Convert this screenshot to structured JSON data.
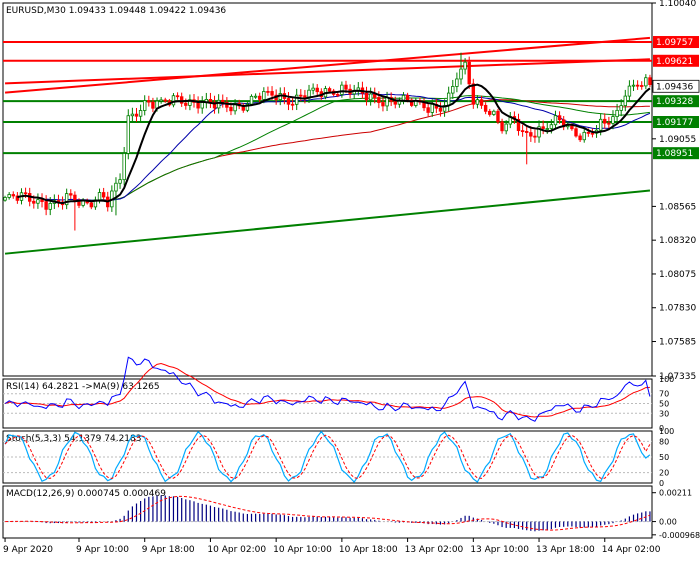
{
  "chart_data": [
    {
      "id": "main",
      "type": "candlestick",
      "title": "EURUSD,M30  1.09433 1.09448 1.09422 1.09436",
      "ylim": [
        1.07335,
        1.1004
      ],
      "y_ticks": [
        "1.10040",
        "1.09757",
        "1.09621",
        "1.09436",
        "1.09328",
        "1.09177",
        "1.09055",
        "1.08951",
        "1.08565",
        "1.08320",
        "1.08075",
        "1.07830",
        "1.07585",
        "1.07335"
      ],
      "x_labels": [
        "9 Apr 2020",
        "9 Apr 10:00",
        "9 Apr 18:00",
        "10 Apr 02:00",
        "10 Apr 10:00",
        "10 Apr 18:00",
        "13 Apr 02:00",
        "13 Apr 10:00",
        "13 Apr 18:00",
        "14 Apr 02:00"
      ],
      "price_line_label": "1.09436",
      "levels": [
        {
          "label": "1.09757",
          "value": 1.09757,
          "color": "#ff0000"
        },
        {
          "label": "1.09621",
          "value": 1.09621,
          "color": "#ff0000"
        },
        {
          "label": "1.09328",
          "value": 1.09328,
          "color": "#008000"
        },
        {
          "label": "1.09177",
          "value": 1.09177,
          "color": "#008000"
        },
        {
          "label": "1.08951",
          "value": 1.08951,
          "color": "#008000"
        }
      ],
      "trendlines": [
        {
          "color": "#ff0000",
          "p1": [
            0,
            1.0939
          ],
          "p2": [
            157,
            1.09787
          ]
        },
        {
          "color": "#ff0000",
          "p1": [
            0,
            1.09457
          ],
          "p2": [
            157,
            1.09632
          ]
        },
        {
          "color": "#008000",
          "p1": [
            0,
            1.08222
          ],
          "p2": [
            157,
            1.0868
          ]
        }
      ],
      "ma_colors": {
        "fast": "#000000",
        "medium": "#0000aa",
        "slow": "#008000",
        "slowest": "#cc0000"
      },
      "candle_up_color": "#008000",
      "candle_down_color": "#ff0000"
    },
    {
      "id": "rsi",
      "type": "line",
      "title": "RSI(14) 64.2821  ->MA(9) 63.1265",
      "ylim": [
        0,
        100
      ],
      "y_ticks": [
        "100",
        "70",
        "50",
        "30",
        "0"
      ],
      "series": [
        {
          "name": "RSI(14)",
          "color": "#0000ff"
        },
        {
          "name": "MA(9)",
          "color": "#ff0000"
        }
      ]
    },
    {
      "id": "stoch",
      "type": "line",
      "title": "Stoch(5,3,3) 54.1379 74.2183",
      "ylim": [
        0,
        100
      ],
      "y_ticks": [
        "100",
        "80",
        "50",
        "20",
        "0"
      ],
      "series": [
        {
          "name": "Main",
          "color": "#00aaff"
        },
        {
          "name": "Signal",
          "color": "#ff0000"
        }
      ]
    },
    {
      "id": "macd",
      "type": "bar",
      "title": "MACD(12,26,9) 0.000745 0.000469",
      "ylim": [
        -0.0012,
        0.0026
      ],
      "y_ticks": [
        "0.00211",
        "0.00",
        "-0.000968"
      ],
      "series": [
        {
          "name": "MACD",
          "color": "#000080"
        },
        {
          "name": "Signal",
          "color": "#ff0000"
        }
      ]
    }
  ]
}
